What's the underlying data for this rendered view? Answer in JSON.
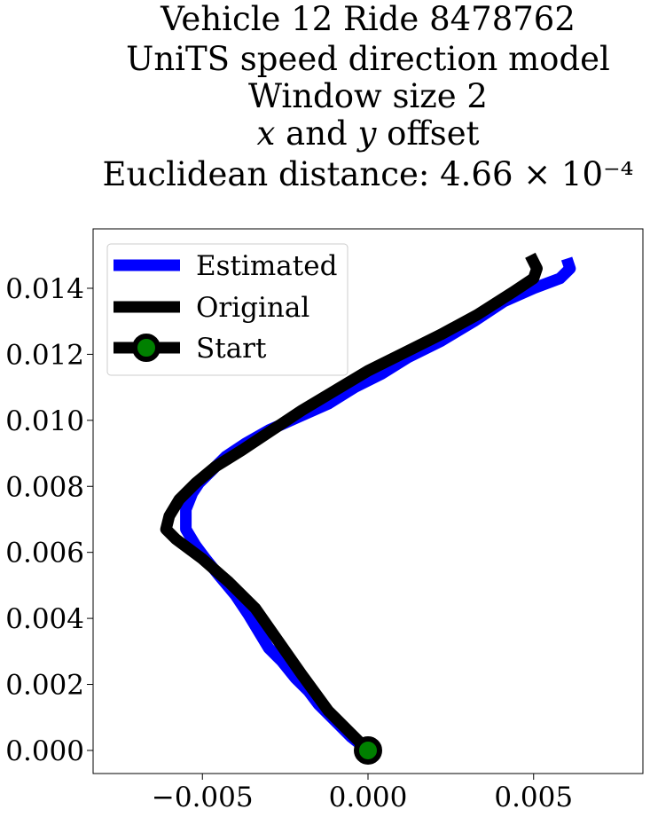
{
  "chart_data": {
    "type": "line",
    "title_lines": [
      "Vehicle 12 Ride 8478762",
      "UniTS speed direction model",
      "Window size 2",
      "𝑥 and 𝑦 offset",
      "Euclidean distance: 4.66 × 10⁻⁴"
    ],
    "xlabel": "",
    "ylabel": "",
    "xlim": [
      -0.0083,
      0.0083
    ],
    "ylim": [
      -0.0007,
      0.0158
    ],
    "xticks": [
      -0.005,
      0.0,
      0.005
    ],
    "xtick_labels": [
      "−0.005",
      "0.000",
      "0.005"
    ],
    "yticks": [
      0.0,
      0.002,
      0.004,
      0.006,
      0.008,
      0.01,
      0.012,
      0.014
    ],
    "ytick_labels": [
      "0.000",
      "0.002",
      "0.004",
      "0.006",
      "0.008",
      "0.010",
      "0.012",
      "0.014"
    ],
    "grid": false,
    "legend_position": "top-left",
    "series": [
      {
        "name": "Estimated",
        "color": "#0000ff",
        "x": [
          0.0,
          -0.0005,
          -0.001,
          -0.0015,
          -0.0018,
          -0.0022,
          -0.0026,
          -0.003,
          -0.0033,
          -0.0036,
          -0.004,
          -0.0045,
          -0.0049,
          -0.0052,
          -0.0055,
          -0.0055,
          -0.0053,
          -0.0051,
          -0.0047,
          -0.0043,
          -0.0037,
          -0.003,
          -0.0021,
          -0.0012,
          -0.0004,
          0.0004,
          0.0012,
          0.0022,
          0.0032,
          0.0041,
          0.005,
          0.0058,
          0.0061,
          0.006
        ],
        "y": [
          0.0,
          0.0004,
          0.0009,
          0.0014,
          0.0018,
          0.0022,
          0.0027,
          0.0031,
          0.0036,
          0.0041,
          0.0047,
          0.0053,
          0.0058,
          0.0062,
          0.0067,
          0.0073,
          0.0078,
          0.0081,
          0.0085,
          0.0089,
          0.0093,
          0.0097,
          0.0101,
          0.0105,
          0.011,
          0.0114,
          0.0119,
          0.0124,
          0.013,
          0.0136,
          0.014,
          0.0143,
          0.0146,
          0.0149
        ]
      },
      {
        "name": "Original",
        "color": "#000000",
        "x": [
          0.0,
          -0.0005,
          -0.0012,
          -0.002,
          -0.0027,
          -0.0034,
          -0.0042,
          -0.005,
          -0.0058,
          -0.0061,
          -0.006,
          -0.0057,
          -0.0052,
          -0.0046,
          -0.0038,
          -0.0029,
          -0.002,
          -0.001,
          0.0,
          0.001,
          0.0022,
          0.0033,
          0.0044,
          0.005,
          0.0051,
          0.0049
        ],
        "y": [
          0.0,
          0.0005,
          0.0012,
          0.0023,
          0.0033,
          0.0043,
          0.0051,
          0.0058,
          0.0064,
          0.0067,
          0.0071,
          0.0076,
          0.0081,
          0.0086,
          0.0091,
          0.0097,
          0.0103,
          0.0109,
          0.0115,
          0.012,
          0.0126,
          0.0132,
          0.0139,
          0.0143,
          0.0146,
          0.015
        ]
      }
    ],
    "start_marker": {
      "name": "Start",
      "x": 0.0,
      "y": 0.0,
      "edge_color": "#000000",
      "face_color": "#008000"
    }
  }
}
